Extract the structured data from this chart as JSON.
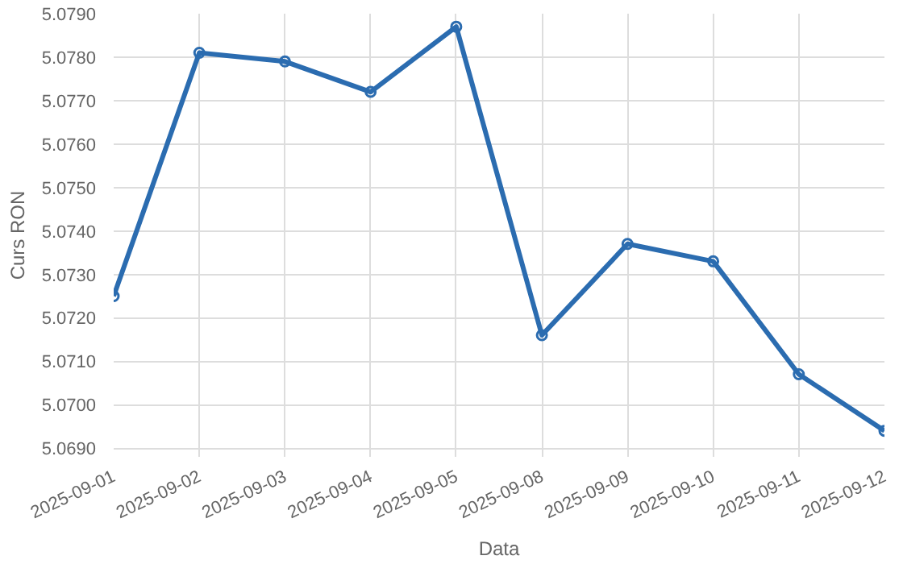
{
  "chart_data": {
    "type": "line",
    "xlabel": "Data",
    "ylabel": "Curs RON",
    "categories": [
      "2025-09-01",
      "2025-09-02",
      "2025-09-03",
      "2025-09-04",
      "2025-09-05",
      "2025-09-08",
      "2025-09-09",
      "2025-09-10",
      "2025-09-11",
      "2025-09-12"
    ],
    "series": [
      {
        "color": "#2b6cb0",
        "values": [
          5.0725,
          5.0781,
          5.0779,
          5.0772,
          5.0787,
          5.0716,
          5.0737,
          5.0733,
          5.0707,
          5.0694
        ]
      }
    ],
    "ylim": [
      5.0688,
      5.079
    ],
    "yticks": [
      {
        "value": 5.069,
        "label": "5.0690"
      },
      {
        "value": 5.07,
        "label": "5.0700"
      },
      {
        "value": 5.071,
        "label": "5.0710"
      },
      {
        "value": 5.072,
        "label": "5.0720"
      },
      {
        "value": 5.073,
        "label": "5.0730"
      },
      {
        "value": 5.074,
        "label": "5.0740"
      },
      {
        "value": 5.075,
        "label": "5.0750"
      },
      {
        "value": 5.076,
        "label": "5.0760"
      },
      {
        "value": 5.077,
        "label": "5.0770"
      },
      {
        "value": 5.078,
        "label": "5.0780"
      },
      {
        "value": 5.079,
        "label": "5.0790"
      }
    ],
    "grid": true,
    "marker": "circle",
    "line_style": "solid"
  }
}
